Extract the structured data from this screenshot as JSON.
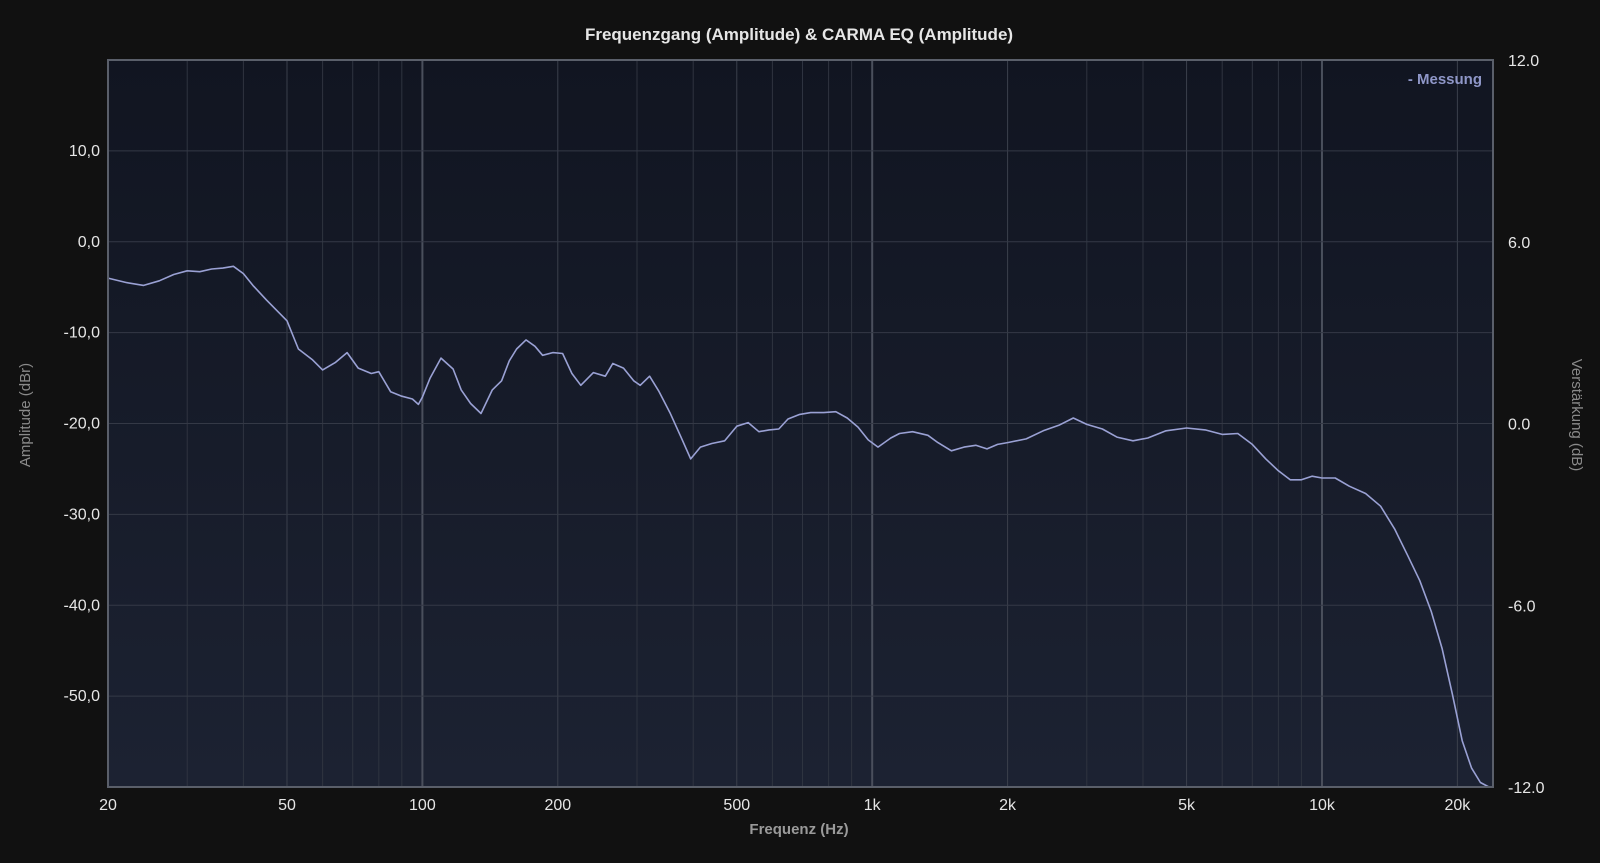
{
  "chart_data": {
    "type": "line",
    "title": "Frequenzgang (Amplitude) & CARMA EQ (Amplitude)",
    "xlabel": "Frequenz (Hz)",
    "ylabel": "Amplitude (dBr)",
    "y2label": "Verstärkung (dB)",
    "x_scale": "log",
    "xlim": [
      20,
      24000
    ],
    "ylim": [
      -60,
      20
    ],
    "y2lim": [
      -12,
      12
    ],
    "grid": true,
    "legend_position": "top-right",
    "x_ticks": [
      {
        "value": 20,
        "label": "20"
      },
      {
        "value": 50,
        "label": "50"
      },
      {
        "value": 100,
        "label": "100"
      },
      {
        "value": 200,
        "label": "200"
      },
      {
        "value": 500,
        "label": "500"
      },
      {
        "value": 1000,
        "label": "1k"
      },
      {
        "value": 2000,
        "label": "2k"
      },
      {
        "value": 5000,
        "label": "5k"
      },
      {
        "value": 10000,
        "label": "10k"
      },
      {
        "value": 20000,
        "label": "20k"
      }
    ],
    "y_ticks": [
      {
        "value": 10,
        "label": "10,0"
      },
      {
        "value": 0,
        "label": "0,0"
      },
      {
        "value": -10,
        "label": "-10,0"
      },
      {
        "value": -20,
        "label": "-20,0"
      },
      {
        "value": -30,
        "label": "-30,0"
      },
      {
        "value": -40,
        "label": "-40,0"
      },
      {
        "value": -50,
        "label": "-50,0"
      }
    ],
    "y2_ticks": [
      {
        "value": 12,
        "label": "12.0"
      },
      {
        "value": 6,
        "label": "6.0"
      },
      {
        "value": 0,
        "label": "0.0"
      },
      {
        "value": -6,
        "label": "-6.0"
      },
      {
        "value": -12,
        "label": "-12.0"
      }
    ],
    "series": [
      {
        "name": "- Messung",
        "color": "#9aa1d4",
        "points": [
          [
            20,
            -4.0
          ],
          [
            22,
            -4.5
          ],
          [
            24,
            -4.8
          ],
          [
            26,
            -4.3
          ],
          [
            28,
            -3.6
          ],
          [
            30,
            -3.2
          ],
          [
            32,
            -3.3
          ],
          [
            34,
            -3.0
          ],
          [
            36,
            -2.9
          ],
          [
            38,
            -2.7
          ],
          [
            40,
            -3.5
          ],
          [
            42,
            -4.8
          ],
          [
            45,
            -6.4
          ],
          [
            50,
            -8.7
          ],
          [
            53,
            -11.8
          ],
          [
            57,
            -13.0
          ],
          [
            60,
            -14.1
          ],
          [
            64,
            -13.3
          ],
          [
            68,
            -12.2
          ],
          [
            72,
            -13.9
          ],
          [
            77,
            -14.5
          ],
          [
            80,
            -14.3
          ],
          [
            85,
            -16.5
          ],
          [
            90,
            -17.0
          ],
          [
            95,
            -17.3
          ],
          [
            98,
            -17.9
          ],
          [
            100,
            -17.1
          ],
          [
            104,
            -15.0
          ],
          [
            110,
            -12.8
          ],
          [
            117,
            -14.0
          ],
          [
            122,
            -16.3
          ],
          [
            128,
            -17.8
          ],
          [
            135,
            -18.9
          ],
          [
            143,
            -16.3
          ],
          [
            150,
            -15.3
          ],
          [
            156,
            -13.1
          ],
          [
            162,
            -11.8
          ],
          [
            170,
            -10.8
          ],
          [
            178,
            -11.5
          ],
          [
            185,
            -12.5
          ],
          [
            195,
            -12.2
          ],
          [
            205,
            -12.3
          ],
          [
            215,
            -14.5
          ],
          [
            225,
            -15.8
          ],
          [
            240,
            -14.4
          ],
          [
            255,
            -14.8
          ],
          [
            265,
            -13.4
          ],
          [
            280,
            -13.9
          ],
          [
            295,
            -15.3
          ],
          [
            305,
            -15.8
          ],
          [
            320,
            -14.8
          ],
          [
            335,
            -16.4
          ],
          [
            355,
            -18.8
          ],
          [
            375,
            -21.4
          ],
          [
            395,
            -23.9
          ],
          [
            415,
            -22.6
          ],
          [
            440,
            -22.2
          ],
          [
            470,
            -21.9
          ],
          [
            500,
            -20.3
          ],
          [
            530,
            -19.9
          ],
          [
            560,
            -20.9
          ],
          [
            590,
            -20.7
          ],
          [
            620,
            -20.6
          ],
          [
            650,
            -19.5
          ],
          [
            690,
            -19.0
          ],
          [
            730,
            -18.8
          ],
          [
            780,
            -18.8
          ],
          [
            830,
            -18.7
          ],
          [
            880,
            -19.4
          ],
          [
            930,
            -20.4
          ],
          [
            980,
            -21.8
          ],
          [
            1030,
            -22.6
          ],
          [
            1100,
            -21.6
          ],
          [
            1150,
            -21.1
          ],
          [
            1230,
            -20.9
          ],
          [
            1330,
            -21.3
          ],
          [
            1400,
            -22.1
          ],
          [
            1500,
            -23.0
          ],
          [
            1600,
            -22.6
          ],
          [
            1700,
            -22.4
          ],
          [
            1800,
            -22.8
          ],
          [
            1900,
            -22.3
          ],
          [
            2000,
            -22.1
          ],
          [
            2200,
            -21.7
          ],
          [
            2400,
            -20.8
          ],
          [
            2600,
            -20.2
          ],
          [
            2800,
            -19.4
          ],
          [
            3000,
            -20.1
          ],
          [
            3250,
            -20.6
          ],
          [
            3500,
            -21.5
          ],
          [
            3800,
            -21.9
          ],
          [
            4100,
            -21.6
          ],
          [
            4500,
            -20.8
          ],
          [
            5000,
            -20.5
          ],
          [
            5500,
            -20.7
          ],
          [
            6000,
            -21.2
          ],
          [
            6500,
            -21.1
          ],
          [
            7000,
            -22.3
          ],
          [
            7500,
            -23.9
          ],
          [
            8000,
            -25.2
          ],
          [
            8500,
            -26.2
          ],
          [
            9000,
            -26.2
          ],
          [
            9500,
            -25.8
          ],
          [
            10000,
            -26.0
          ],
          [
            10700,
            -26.0
          ],
          [
            11500,
            -26.9
          ],
          [
            12500,
            -27.7
          ],
          [
            13500,
            -29.1
          ],
          [
            14500,
            -31.6
          ],
          [
            15500,
            -34.5
          ],
          [
            16500,
            -37.3
          ],
          [
            17500,
            -40.7
          ],
          [
            18500,
            -44.8
          ],
          [
            19500,
            -49.8
          ],
          [
            20500,
            -54.9
          ],
          [
            21500,
            -57.9
          ],
          [
            22500,
            -59.5
          ],
          [
            23500,
            -60.0
          ]
        ]
      }
    ]
  }
}
